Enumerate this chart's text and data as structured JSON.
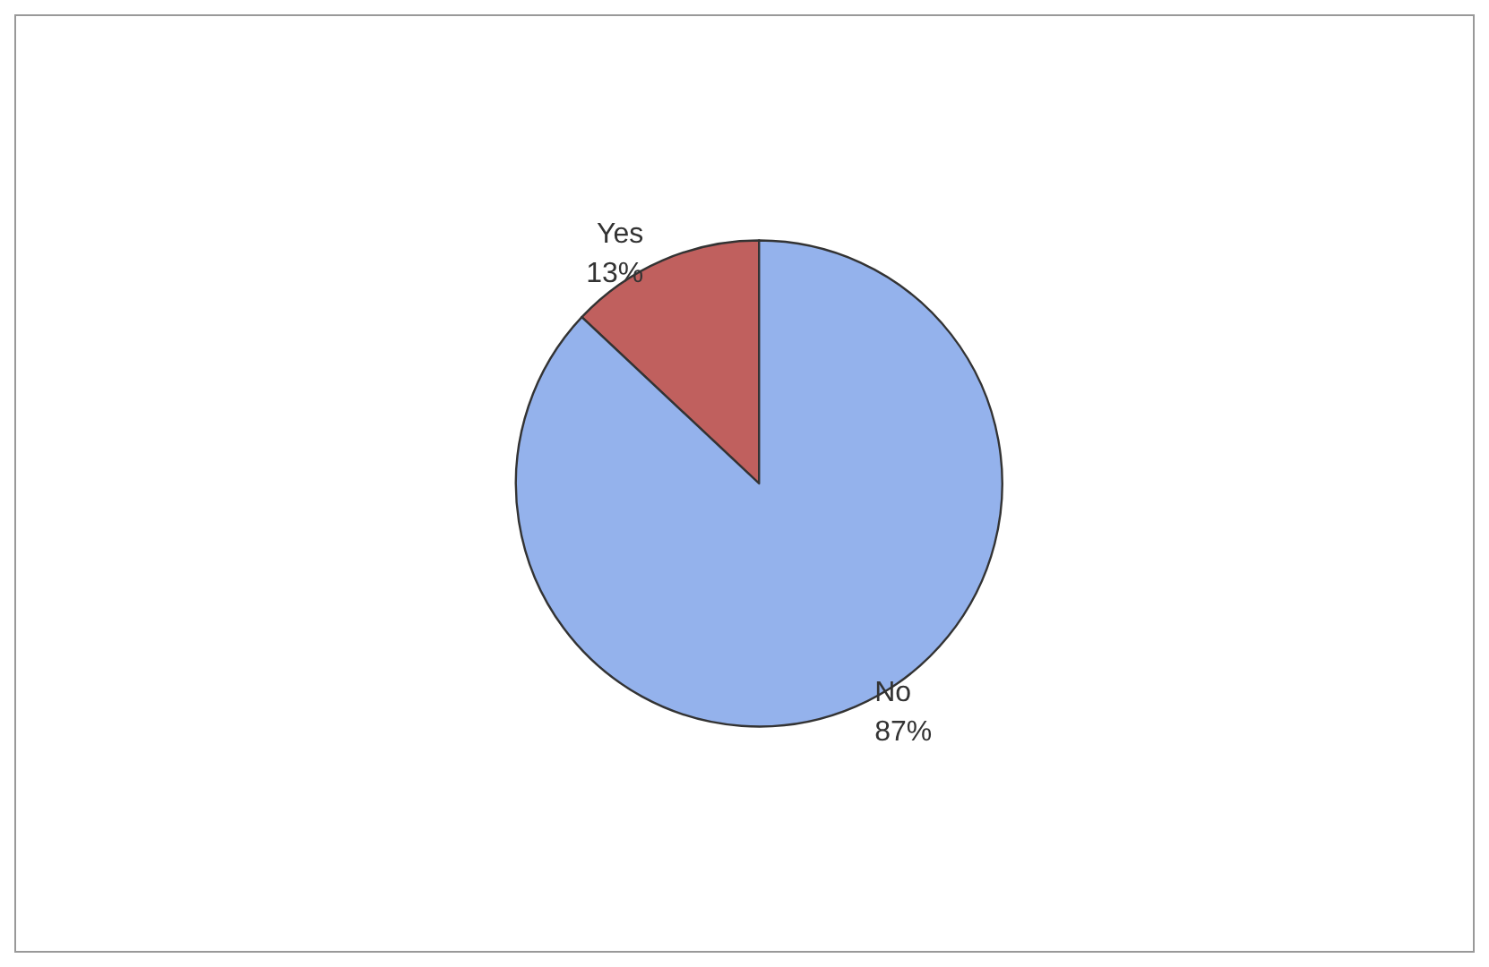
{
  "chart_data": {
    "type": "pie",
    "categories": [
      "Yes",
      "No"
    ],
    "values": [
      13,
      87
    ],
    "colors": [
      "#c0605e",
      "#94b2ec"
    ],
    "value_labels": [
      "13%",
      "87%"
    ],
    "legend": false
  }
}
